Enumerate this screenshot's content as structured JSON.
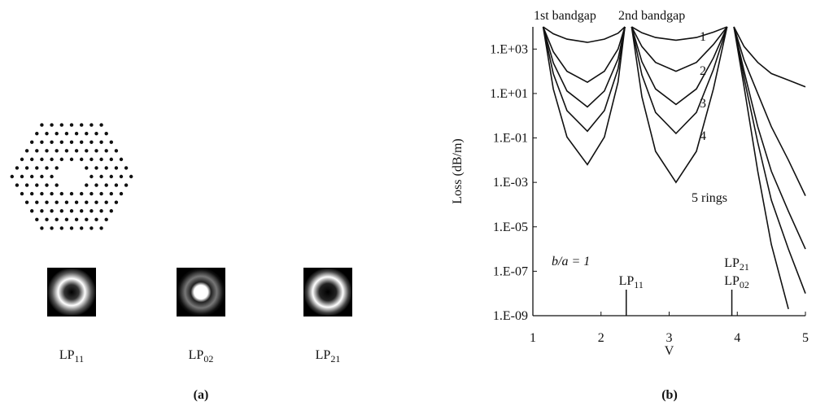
{
  "panel_a": {
    "modes": [
      {
        "main": "LP",
        "sub": "11"
      },
      {
        "main": "LP",
        "sub": "02"
      },
      {
        "main": "LP",
        "sub": "21"
      }
    ],
    "caption": "(a)"
  },
  "chart_data": {
    "type": "line",
    "caption": "(b)",
    "xlabel": "V",
    "ylabel": "Loss (dB/m)",
    "log_y": true,
    "annotations": [
      "1st bandgap",
      "2nd bandgap",
      "b/a = 1"
    ],
    "markers": [
      {
        "x": 2.37,
        "labels": [
          {
            "main": "LP",
            "sub": "11"
          }
        ]
      },
      {
        "x": 3.92,
        "labels": [
          {
            "main": "LP",
            "sub": "21"
          },
          {
            "main": "LP",
            "sub": "02"
          }
        ]
      }
    ],
    "xlim": [
      1,
      5
    ],
    "xticks": [
      1,
      2,
      3,
      4,
      5
    ],
    "ylim": [
      1e-09,
      10000.0
    ],
    "yticks": [
      {
        "value": 1e-09,
        "label": "1.E-09"
      },
      {
        "value": 1e-07,
        "label": "1.E-07"
      },
      {
        "value": 1e-05,
        "label": "1.E-05"
      },
      {
        "value": 0.001,
        "label": "1.E-03"
      },
      {
        "value": 0.1,
        "label": "1.E-01"
      },
      {
        "value": 10,
        "label": "1.E+01"
      },
      {
        "value": 1000,
        "label": "1.E+03"
      }
    ],
    "x": [
      1.15,
      1.3,
      1.5,
      1.8,
      2.05,
      2.25,
      2.35,
      2.4,
      2.45,
      2.6,
      2.8,
      3.1,
      3.4,
      3.65,
      3.85,
      3.9,
      3.95,
      4.1,
      4.3,
      4.5,
      4.75,
      5
    ],
    "series": [
      {
        "name": "1",
        "color": "#111111",
        "values": [
          10000.0,
          4900,
          2800,
          2000,
          2800,
          5200,
          10000.0,
          null,
          10000.0,
          5400,
          3300,
          2500,
          3300,
          5800,
          10000.0,
          null,
          10000.0,
          1300,
          250,
          79,
          40,
          20
        ]
      },
      {
        "name": "2",
        "color": "#111111",
        "values": [
          10000.0,
          760,
          100,
          32,
          100,
          1000,
          10000.0,
          null,
          10000.0,
          1300,
          250,
          100,
          250,
          1600,
          10000.0,
          null,
          10000.0,
          320,
          10,
          0.32,
          0.01,
          0.00025
        ]
      },
      {
        "name": "3",
        "color": "#111111",
        "values": [
          10000.0,
          240,
          13,
          2.5,
          13,
          360,
          10000.0,
          null,
          10000.0,
          270,
          16,
          3.2,
          16,
          400,
          10000.0,
          null,
          10000.0,
          100,
          0.32,
          0.0032,
          5e-05,
          1e-06
        ]
      },
      {
        "name": "4",
        "color": "#111111",
        "values": [
          10000.0,
          78,
          1.7,
          0.2,
          1.7,
          130,
          10000.0,
          null,
          10000.0,
          69,
          1.4,
          0.16,
          1.4,
          120,
          10000.0,
          null,
          10000.0,
          50,
          0.063,
          0.00016,
          1e-06,
          1e-08
        ]
      },
      {
        "name": "5 rings",
        "color": "#111111",
        "values": [
          10000.0,
          16,
          0.11,
          0.0063,
          0.11,
          33,
          10000.0,
          null,
          10000.0,
          7.1,
          0.025,
          0.001,
          0.025,
          16,
          10000.0,
          null,
          10000.0,
          20,
          0.0032,
          1.6e-06,
          2e-09,
          null
        ]
      }
    ]
  }
}
